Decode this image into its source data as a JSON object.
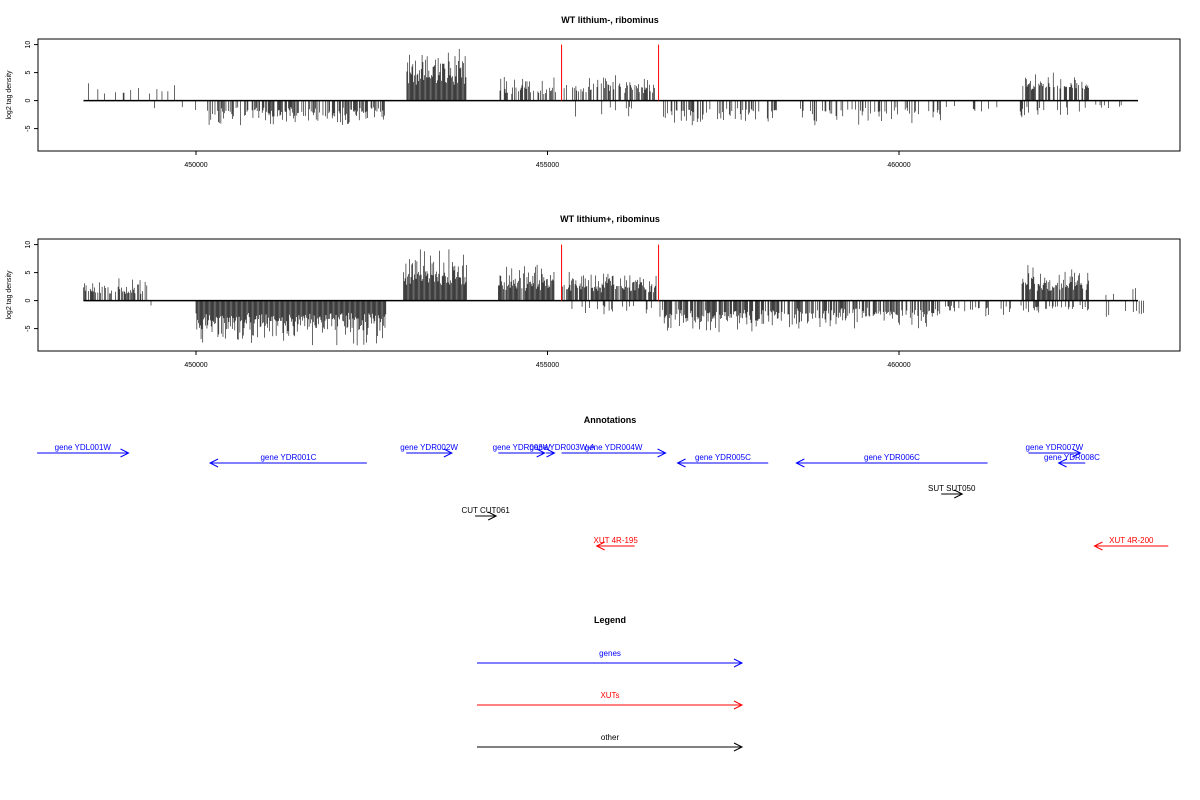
{
  "colors": {
    "signal": "#000000",
    "spike": "#ff0000",
    "genes": "#0000ff",
    "xuts": "#ff0000",
    "other": "#000000"
  },
  "chart_data": [
    {
      "type": "bar",
      "title": "WT lithium-, ribominus",
      "ylabel": "log2 tag density",
      "xlim": [
        447600,
        464000
      ],
      "ylim": [
        -9,
        11
      ],
      "x_ticks": [
        450000,
        455000,
        460000
      ],
      "y_ticks": [
        -5,
        0,
        5,
        10
      ],
      "grid": false,
      "series": [
        {
          "segments": [
            {
              "start": 448400,
              "end": 449700,
              "strand": "+",
              "max": 3.5,
              "density": 0.18
            },
            {
              "start": 449300,
              "end": 450000,
              "strand": "-",
              "max": 3.0,
              "density": 0.05
            },
            {
              "start": 450150,
              "end": 452700,
              "strand": "-",
              "max": 4.5,
              "density": 0.6
            },
            {
              "start": 453000,
              "end": 453850,
              "strand": "+",
              "max": 9.5,
              "density": 1.0
            },
            {
              "start": 454300,
              "end": 455150,
              "strand": "+",
              "max": 4.5,
              "density": 0.5
            },
            {
              "start": 455200,
              "end": 456550,
              "strand": "+",
              "max": 4.8,
              "density": 0.5
            },
            {
              "start": 455400,
              "end": 456500,
              "strand": "-",
              "max": 3.0,
              "density": 0.08
            },
            {
              "start": 456650,
              "end": 458300,
              "strand": "-",
              "max": 4.5,
              "density": 0.4
            },
            {
              "start": 458600,
              "end": 460600,
              "strand": "-",
              "max": 4.5,
              "density": 0.35
            },
            {
              "start": 460600,
              "end": 461600,
              "strand": "-",
              "max": 2.5,
              "density": 0.15
            },
            {
              "start": 461750,
              "end": 462700,
              "strand": "+",
              "max": 5.5,
              "density": 0.7
            },
            {
              "start": 461700,
              "end": 462700,
              "strand": "-",
              "max": 3.0,
              "density": 0.2
            },
            {
              "start": 462800,
              "end": 463500,
              "strand": "-",
              "max": 2.0,
              "density": 0.05
            }
          ],
          "spikes": [
            {
              "x": 455200,
              "y": 10
            },
            {
              "x": 456580,
              "y": 10
            }
          ]
        }
      ]
    },
    {
      "type": "bar",
      "title": "WT lithium+, ribominus",
      "ylabel": "log2 tag density",
      "xlim": [
        447600,
        464000
      ],
      "ylim": [
        -9,
        11
      ],
      "x_ticks": [
        450000,
        455000,
        460000
      ],
      "y_ticks": [
        -5,
        0,
        5,
        10
      ],
      "grid": false,
      "series": [
        {
          "segments": [
            {
              "start": 448400,
              "end": 449300,
              "strand": "+",
              "max": 4.0,
              "density": 0.55
            },
            {
              "start": 449300,
              "end": 450000,
              "strand": "-",
              "max": 2.0,
              "density": 0.05
            },
            {
              "start": 450000,
              "end": 452700,
              "strand": "-",
              "max": 8.0,
              "density": 1.0
            },
            {
              "start": 452950,
              "end": 453850,
              "strand": "+",
              "max": 10.0,
              "density": 1.0
            },
            {
              "start": 454300,
              "end": 455100,
              "strand": "+",
              "max": 6.5,
              "density": 0.9
            },
            {
              "start": 455200,
              "end": 456550,
              "strand": "+",
              "max": 5.5,
              "density": 0.8
            },
            {
              "start": 455300,
              "end": 456500,
              "strand": "-",
              "max": 3.0,
              "density": 0.2
            },
            {
              "start": 456600,
              "end": 458300,
              "strand": "-",
              "max": 6.0,
              "density": 0.8
            },
            {
              "start": 458300,
              "end": 460600,
              "strand": "-",
              "max": 5.0,
              "density": 0.7
            },
            {
              "start": 460600,
              "end": 461600,
              "strand": "-",
              "max": 3.0,
              "density": 0.3
            },
            {
              "start": 461750,
              "end": 462700,
              "strand": "+",
              "max": 6.5,
              "density": 0.9
            },
            {
              "start": 461700,
              "end": 462700,
              "strand": "-",
              "max": 3.0,
              "density": 0.3
            },
            {
              "start": 462800,
              "end": 463500,
              "strand": "+",
              "max": 3.0,
              "density": 0.1
            },
            {
              "start": 462900,
              "end": 463500,
              "strand": "-",
              "max": 4.0,
              "density": 0.1
            }
          ],
          "spikes": [
            {
              "x": 455200,
              "y": 10
            },
            {
              "x": 456580,
              "y": 10
            }
          ]
        }
      ]
    }
  ],
  "annotations": {
    "title": "Annotations",
    "features": [
      {
        "label": "gene YDL001W",
        "type": "genes",
        "start": 447740,
        "end": 449040,
        "strand": "+"
      },
      {
        "label": "gene YDR001C",
        "type": "genes",
        "start": 450200,
        "end": 452430,
        "strand": "-"
      },
      {
        "label": "gene YDR002W",
        "type": "genes",
        "start": 452990,
        "end": 453640,
        "strand": "+"
      },
      {
        "label": "gene YDR003W",
        "type": "genes",
        "start": 454300,
        "end": 454960,
        "strand": "+"
      },
      {
        "label": "gene YDR003W-A",
        "type": "genes",
        "start": 454980,
        "end": 455100,
        "strand": "+"
      },
      {
        "label": "gene YDR004W",
        "type": "genes",
        "start": 455200,
        "end": 456680,
        "strand": "+"
      },
      {
        "label": "gene YDR005C",
        "type": "genes",
        "start": 456850,
        "end": 458140,
        "strand": "-"
      },
      {
        "label": "gene YDR006C",
        "type": "genes",
        "start": 458540,
        "end": 461260,
        "strand": "-"
      },
      {
        "label": "gene YDR007W",
        "type": "genes",
        "start": 461840,
        "end": 462580,
        "strand": "+"
      },
      {
        "label": "gene YDR008C",
        "type": "genes",
        "start": 462270,
        "end": 462650,
        "strand": "-"
      },
      {
        "label": "SUT SUT050",
        "type": "other",
        "start": 460600,
        "end": 460900,
        "strand": "+"
      },
      {
        "label": "CUT CUT061",
        "type": "other",
        "start": 453970,
        "end": 454270,
        "strand": "+"
      },
      {
        "label": "XUT 4R-195",
        "type": "xuts",
        "start": 455700,
        "end": 456240,
        "strand": "-"
      },
      {
        "label": "XUT 4R-200",
        "type": "xuts",
        "start": 462780,
        "end": 463830,
        "strand": "-"
      }
    ]
  },
  "legend": {
    "title": "Legend",
    "items": [
      {
        "label": "genes",
        "type": "genes"
      },
      {
        "label": "XUTs",
        "type": "xuts"
      },
      {
        "label": "other",
        "type": "other"
      }
    ]
  }
}
